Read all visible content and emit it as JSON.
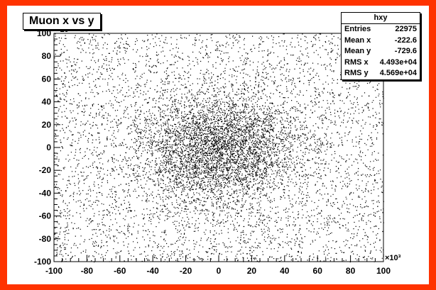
{
  "chart_data": {
    "type": "scatter",
    "title": "Muon x vs y",
    "xlabel": "",
    "ylabel": "",
    "xlim": [
      -100000,
      100000
    ],
    "ylim": [
      -100000,
      100000
    ],
    "x_ticks": [
      -100,
      -80,
      -60,
      -40,
      -20,
      0,
      20,
      40,
      60,
      80,
      100
    ],
    "y_ticks": [
      -100,
      -80,
      -60,
      -40,
      -20,
      0,
      20,
      40,
      60,
      80,
      100
    ],
    "x_scale_label": "×10³",
    "y_scale_label": "×10³",
    "grid": false,
    "legend": "none",
    "marker_color": "#000000",
    "stats": {
      "name": "hxy",
      "rows": [
        {
          "label": "Entries",
          "value": "22975"
        },
        {
          "label": "Mean x",
          "value": "-222.6"
        },
        {
          "label": "Mean y",
          "value": "-729.6"
        },
        {
          "label": "RMS x",
          "value": "4.493e+04"
        },
        {
          "label": "RMS y",
          "value": "4.569e+04"
        }
      ]
    },
    "distribution": {
      "entries": 22975,
      "mean_x": -222.6,
      "mean_y": -729.6,
      "rms_x": 44930,
      "rms_y": 45690
    }
  },
  "colors": {
    "frame": "#ff3300",
    "canvas": "#ffffff",
    "ink": "#000000"
  }
}
